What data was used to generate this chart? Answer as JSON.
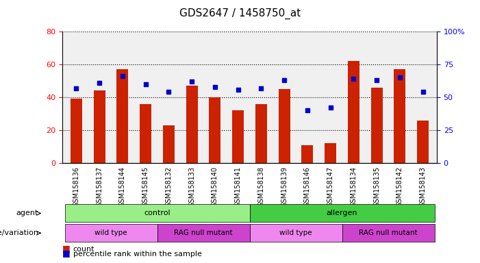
{
  "title": "GDS2647 / 1458750_at",
  "samples": [
    "GSM158136",
    "GSM158137",
    "GSM158144",
    "GSM158145",
    "GSM158132",
    "GSM158133",
    "GSM158140",
    "GSM158141",
    "GSM158138",
    "GSM158139",
    "GSM158146",
    "GSM158147",
    "GSM158134",
    "GSM158135",
    "GSM158142",
    "GSM158143"
  ],
  "counts": [
    39,
    44,
    57,
    36,
    23,
    47,
    40,
    32,
    36,
    45,
    11,
    12,
    62,
    46,
    57,
    26
  ],
  "percentiles": [
    57,
    61,
    66,
    60,
    54,
    62,
    58,
    56,
    57,
    63,
    40,
    42,
    64,
    63,
    65,
    54
  ],
  "bar_color": "#cc2200",
  "dot_color": "#0000cc",
  "ylim_left": [
    0,
    80
  ],
  "ylim_right": [
    0,
    100
  ],
  "yticks_left": [
    0,
    20,
    40,
    60,
    80
  ],
  "yticks_right": [
    0,
    25,
    50,
    75,
    100
  ],
  "ytick_labels_right": [
    "0",
    "25",
    "50",
    "75",
    "100%"
  ],
  "agent_labels": [
    {
      "text": "control",
      "start": 0,
      "end": 8,
      "color": "#99ee88"
    },
    {
      "text": "allergen",
      "start": 8,
      "end": 16,
      "color": "#44cc44"
    }
  ],
  "genotype_labels": [
    {
      "text": "wild type",
      "start": 0,
      "end": 4,
      "color": "#ee88ee"
    },
    {
      "text": "RAG null mutant",
      "start": 4,
      "end": 8,
      "color": "#cc44cc"
    },
    {
      "text": "wild type",
      "start": 8,
      "end": 12,
      "color": "#ee88ee"
    },
    {
      "text": "RAG null mutant",
      "start": 12,
      "end": 16,
      "color": "#cc44cc"
    }
  ],
  "agent_row_label": "agent",
  "genotype_row_label": "genotype/variation",
  "legend_count_label": "count",
  "legend_percentile_label": "percentile rank within the sample",
  "background_color": "#ffffff"
}
